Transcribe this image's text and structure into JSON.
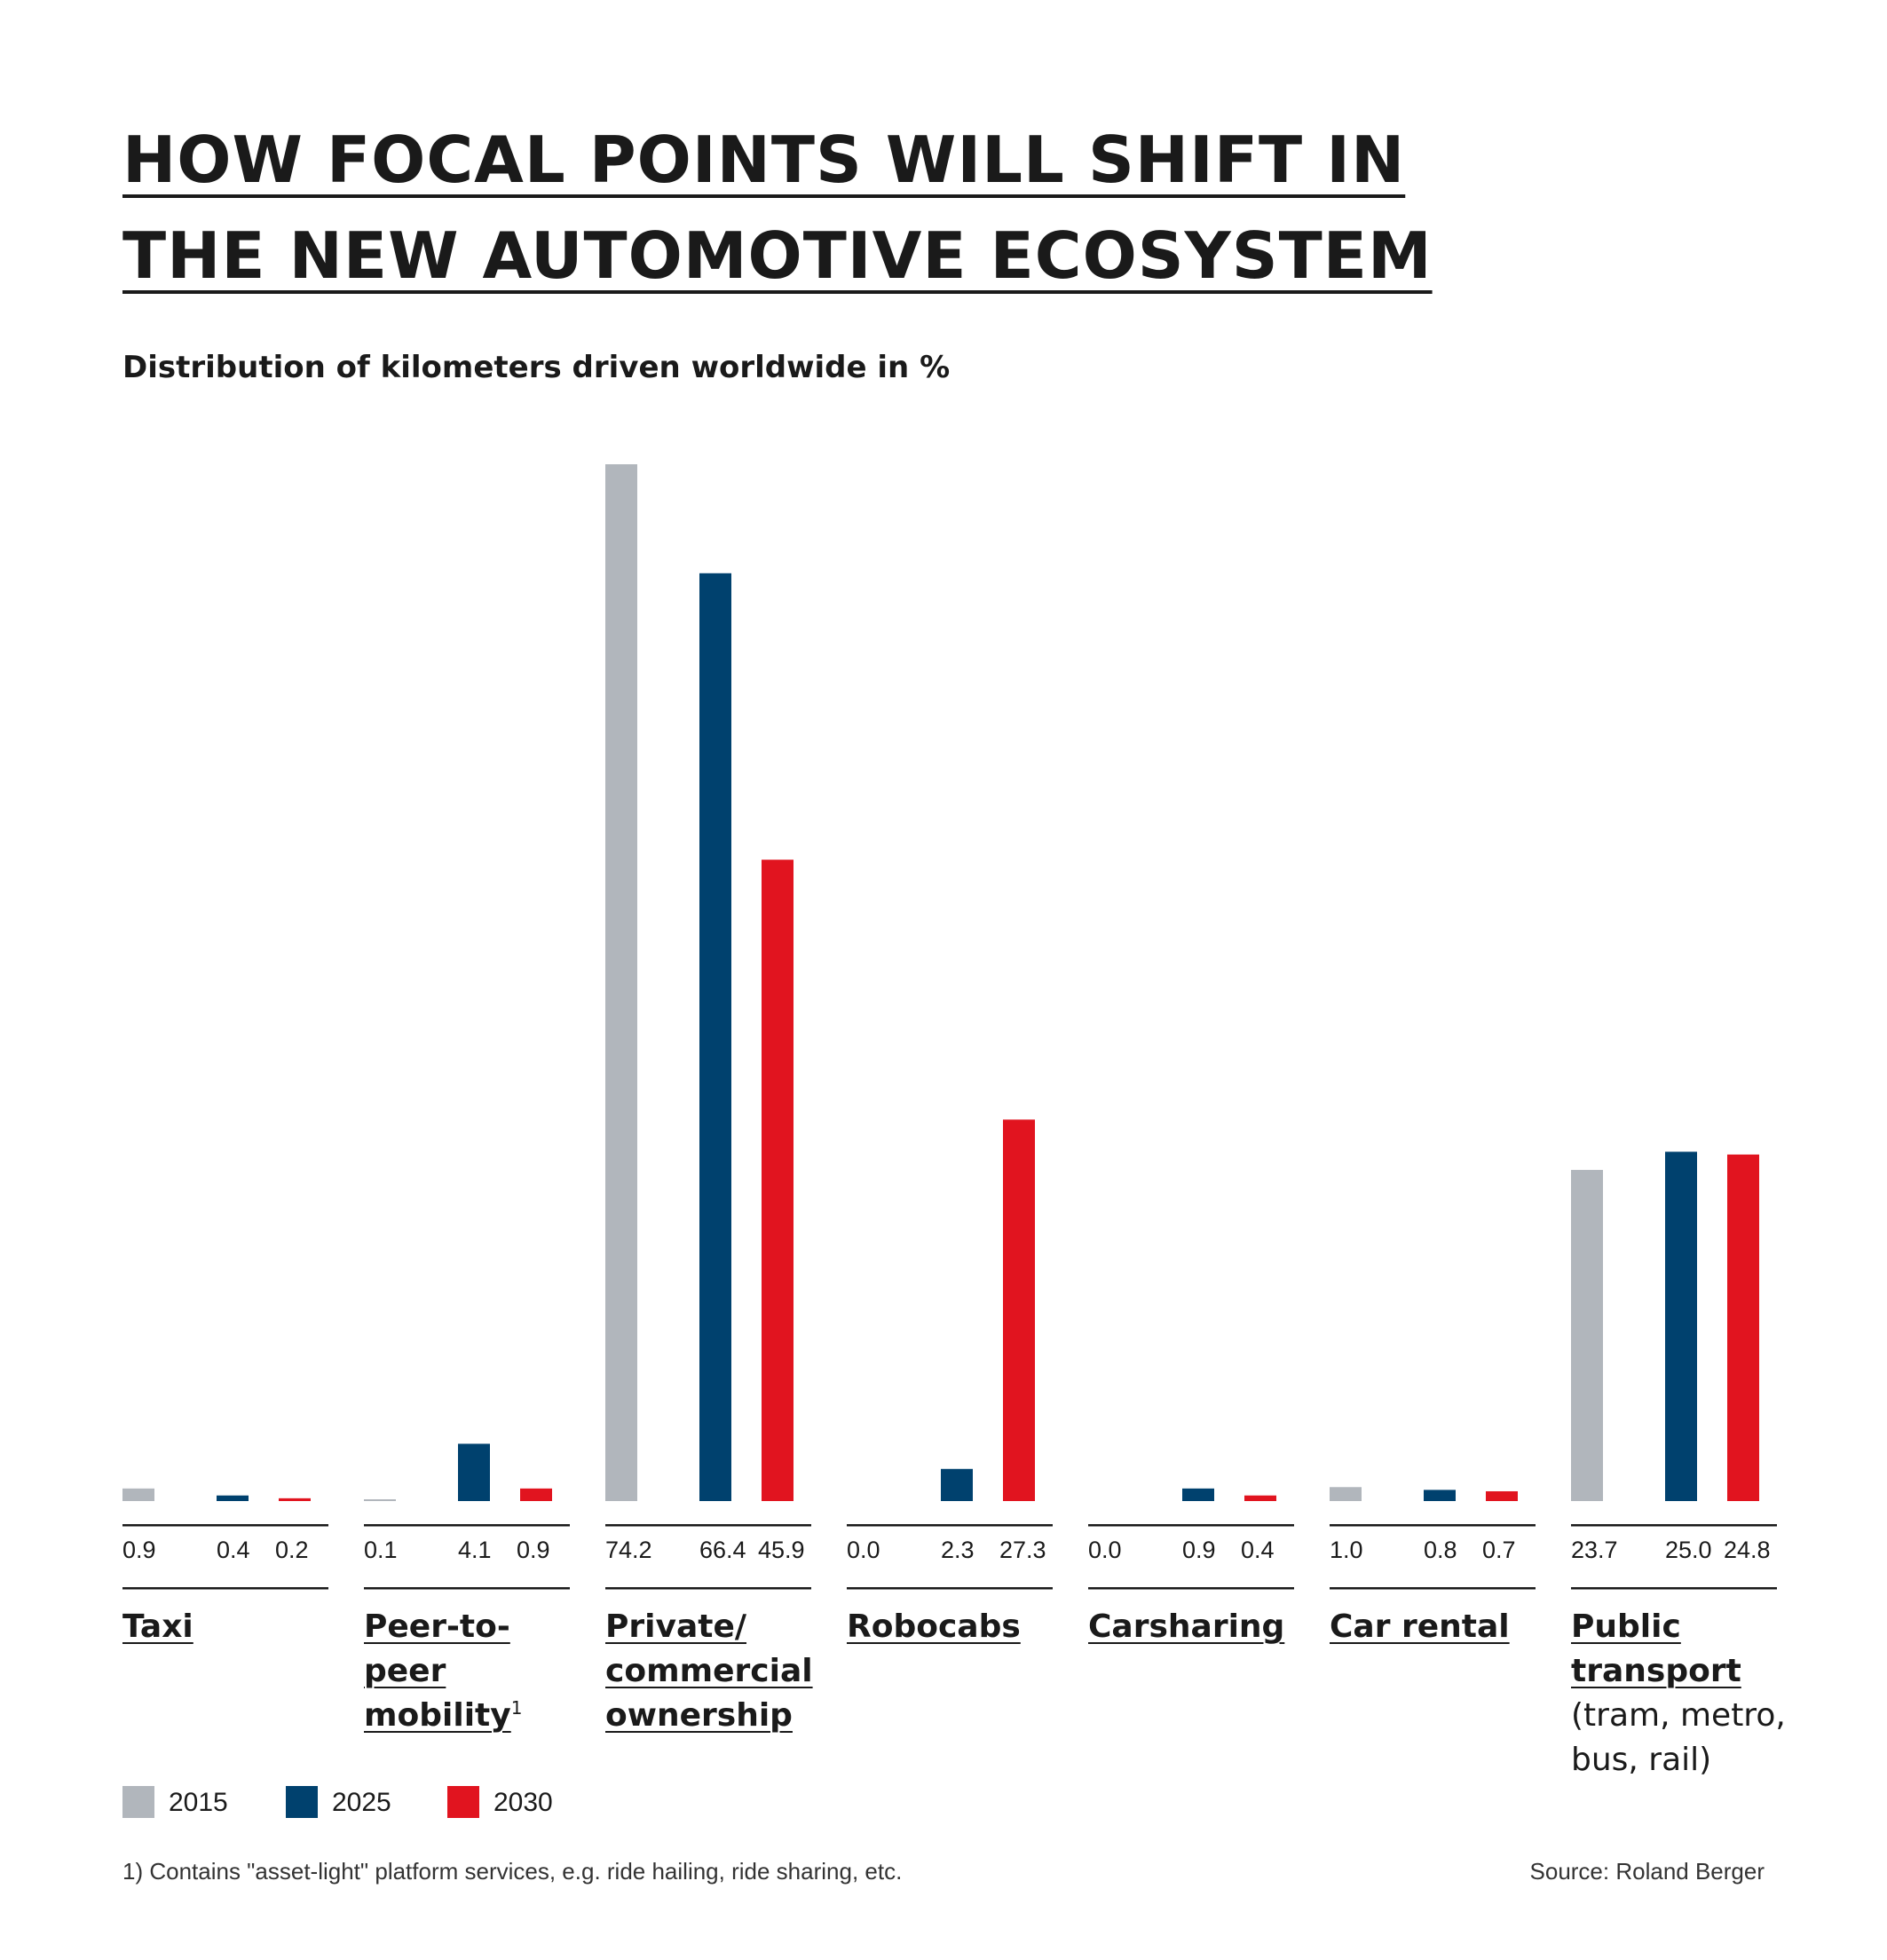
{
  "title": {
    "line1": "HOW FOCAL POINTS WILL SHIFT IN",
    "line2": "THE NEW AUTOMOTIVE ECOSYSTEM"
  },
  "subtitle": "Distribution of kilometers driven worldwide in %",
  "colors": {
    "2015": "#b1b6bc",
    "2025": "#00416e",
    "2030": "#e1141f",
    "text": "#1a1a1a",
    "rule": "#1a1a1a"
  },
  "legend": [
    {
      "year": "2015",
      "label": "2015"
    },
    {
      "year": "2025",
      "label": "2025"
    },
    {
      "year": "2030",
      "label": "2030"
    }
  ],
  "footnote": "1) Contains \"asset-light\" platform services, e.g. ride hailing, ride sharing, etc.",
  "source": "Source: Roland Berger",
  "chart_data": {
    "type": "bar",
    "title": "HOW FOCAL POINTS WILL SHIFT IN THE NEW AUTOMOTIVE ECOSYSTEM",
    "subtitle": "Distribution of kilometers driven worldwide in %",
    "xlabel": "",
    "ylabel": "",
    "ylim": [
      0,
      74.2
    ],
    "grid": false,
    "legend_position": "bottom-left",
    "categories": [
      {
        "name": "Taxi",
        "sup": "",
        "note": ""
      },
      {
        "name": "Peer-to-peer mobility",
        "sup": "1",
        "note": ""
      },
      {
        "name": "Private/ commercial ownership",
        "sup": "",
        "note": ""
      },
      {
        "name": "Robocabs",
        "sup": "",
        "note": ""
      },
      {
        "name": "Carsharing",
        "sup": "",
        "note": ""
      },
      {
        "name": "Car rental",
        "sup": "",
        "note": ""
      },
      {
        "name": "Public transport",
        "sup": "",
        "note": "(tram, metro, bus, rail)"
      }
    ],
    "series": [
      {
        "name": "2015",
        "values": [
          0.9,
          0.1,
          74.2,
          0.0,
          0.0,
          1.0,
          23.7
        ],
        "labels": [
          "0.9",
          "0.1",
          "74.2",
          "0.0",
          "0.0",
          "1.0",
          "23.7"
        ]
      },
      {
        "name": "2025",
        "values": [
          0.4,
          4.1,
          66.4,
          2.3,
          0.9,
          0.8,
          25.0
        ],
        "labels": [
          "0.4",
          "4.1",
          "66.4",
          "2.3",
          "0.9",
          "0.8",
          "25.0"
        ]
      },
      {
        "name": "2030",
        "values": [
          0.2,
          0.9,
          45.9,
          27.3,
          0.4,
          0.7,
          24.8
        ],
        "labels": [
          "0.2",
          "0.9",
          "45.9",
          "27.3",
          "0.4",
          "0.7",
          "24.8"
        ]
      }
    ]
  }
}
